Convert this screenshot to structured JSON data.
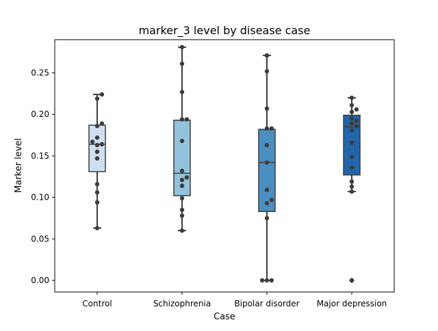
{
  "chart_data": {
    "type": "box",
    "title": "marker_3 level by disease case",
    "xlabel": "Case",
    "ylabel": "Marker level",
    "ylim": [
      -0.014,
      0.29
    ],
    "yticks": [
      0.0,
      0.05,
      0.1,
      0.15,
      0.2,
      0.25
    ],
    "ytick_labels": [
      "0.00",
      "0.05",
      "0.10",
      "0.15",
      "0.20",
      "0.25"
    ],
    "categories": [
      "Control",
      "Schizophrenia",
      "Bipolar disorder",
      "Major depression"
    ],
    "colors": [
      "#cddff0",
      "#93c2dc",
      "#4a8ec2",
      "#2166a9"
    ],
    "boxes": [
      {
        "category": "Control",
        "min": 0.063,
        "q1": 0.131,
        "median": 0.164,
        "q3": 0.187,
        "max": 0.224,
        "outliers": []
      },
      {
        "category": "Schizophrenia",
        "min": 0.06,
        "q1": 0.102,
        "median": 0.129,
        "q3": 0.193,
        "max": 0.281,
        "outliers": []
      },
      {
        "category": "Bipolar disorder",
        "min": 0.0,
        "q1": 0.083,
        "median": 0.142,
        "q3": 0.182,
        "max": 0.271,
        "outliers": []
      },
      {
        "category": "Major depression",
        "min": 0.107,
        "q1": 0.127,
        "median": 0.185,
        "q3": 0.199,
        "max": 0.22,
        "outliers": [
          0.0
        ]
      }
    ],
    "points": [
      [
        0.224,
        0.219,
        0.189,
        0.186,
        0.172,
        0.167,
        0.164,
        0.163,
        0.155,
        0.147,
        0.116,
        0.106,
        0.094,
        0.063
      ],
      [
        0.281,
        0.261,
        0.227,
        0.194,
        0.194,
        0.168,
        0.132,
        0.124,
        0.121,
        0.114,
        0.099,
        0.085,
        0.078,
        0.06
      ],
      [
        0.271,
        0.252,
        0.207,
        0.183,
        0.183,
        0.163,
        0.142,
        0.109,
        0.097,
        0.093,
        0.075,
        0.0,
        0.0,
        0.0
      ],
      [
        0.22,
        0.211,
        0.206,
        0.203,
        0.195,
        0.192,
        0.189,
        0.186,
        0.181,
        0.166,
        0.149,
        0.136,
        0.119,
        0.113,
        0.107,
        0.0
      ]
    ]
  }
}
